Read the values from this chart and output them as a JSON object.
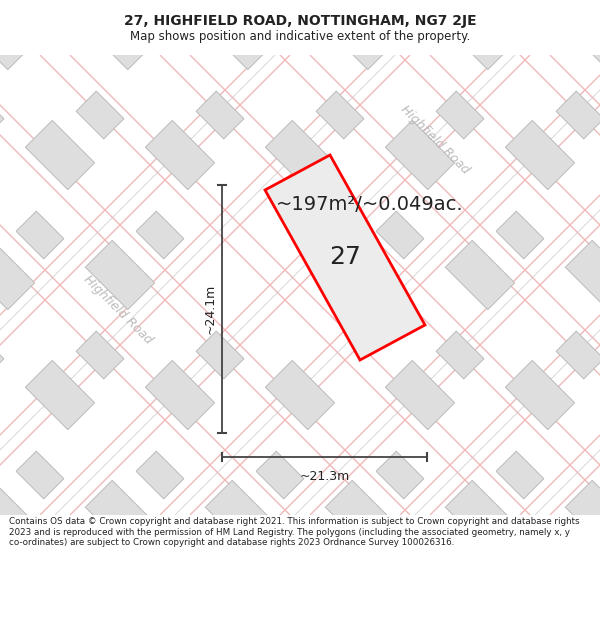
{
  "title_line1": "27, HIGHFIELD ROAD, NOTTINGHAM, NG7 2JE",
  "title_line2": "Map shows position and indicative extent of the property.",
  "area_text": "~197m²/~0.049ac.",
  "label_27": "27",
  "dim_height": "~24.1m",
  "dim_width": "~21.3m",
  "road_label_left": "Highfield Road",
  "road_label_right": "Highfield Road",
  "footer_text": "Contains OS data © Crown copyright and database right 2021. This information is subject to Crown copyright and database rights 2023 and is reproduced with the permission of HM Land Registry. The polygons (including the associated geometry, namely x, y co-ordinates) are subject to Crown copyright and database rights 2023 Ordnance Survey 100026316.",
  "map_bg": "#f7f7f7",
  "plot_color_fill": "#ececec",
  "plot_color_edge": "#ff0000",
  "building_fill": "#dedede",
  "building_edge": "#bbbbbb",
  "road_line_color": "#f0b8b8",
  "road_line_color2": "#c8c8c8",
  "dim_line_color": "#444444",
  "text_color": "#222222",
  "road_text_color": "#bbbbbb",
  "title_fontsize": 10,
  "subtitle_fontsize": 8.5,
  "area_fontsize": 14,
  "label_fontsize": 18,
  "dim_fontsize": 9,
  "road_fontsize": 9,
  "footer_fontsize": 6.3
}
